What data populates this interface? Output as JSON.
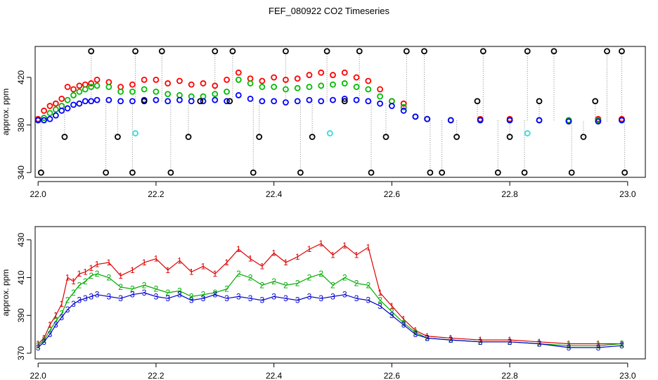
{
  "title": "FEF_080922  CO2 Timeseries",
  "chart_data": [
    {
      "type": "scatter",
      "ylabel": "approx. ppm",
      "xlim": [
        21.995,
        23.03
      ],
      "ylim": [
        336,
        446
      ],
      "xticks": [
        22.0,
        22.2,
        22.4,
        22.6,
        22.8,
        23.0
      ],
      "xtick_labels": [
        "22.0",
        "22.2",
        "22.4",
        "22.6",
        "22.8",
        "23.0"
      ],
      "yticks": [
        340,
        380,
        420
      ],
      "ytick_labels": [
        "340",
        "380",
        "420"
      ],
      "series": [
        {
          "name": "red",
          "color": "#ff0000",
          "x": [
            22.0,
            22.01,
            22.02,
            22.03,
            22.04,
            22.05,
            22.06,
            22.07,
            22.08,
            22.09,
            22.1,
            22.12,
            22.14,
            22.16,
            22.18,
            22.2,
            22.22,
            22.24,
            22.26,
            22.28,
            22.3,
            22.32,
            22.34,
            22.36,
            22.38,
            22.4,
            22.42,
            22.44,
            22.46,
            22.48,
            22.5,
            22.52,
            22.54,
            22.56,
            22.58,
            22.6,
            22.62,
            22.64,
            22.66,
            22.7,
            22.75,
            22.8,
            22.85,
            22.9,
            22.95,
            22.99
          ],
          "y": [
            385,
            392,
            396,
            398,
            402,
            412,
            410,
            413,
            414,
            415,
            418,
            416,
            412,
            414,
            418,
            418,
            415,
            417,
            414,
            415,
            413,
            418,
            424,
            419,
            417,
            420,
            418,
            419,
            422,
            424,
            422,
            424,
            420,
            417,
            410,
            400,
            398,
            387,
            385,
            384,
            385,
            385,
            384,
            384,
            385,
            385
          ]
        },
        {
          "name": "green",
          "color": "#00bb00",
          "x": [
            22.0,
            22.01,
            22.02,
            22.03,
            22.04,
            22.05,
            22.06,
            22.07,
            22.08,
            22.09,
            22.1,
            22.12,
            22.14,
            22.16,
            22.18,
            22.2,
            22.22,
            22.24,
            22.26,
            22.28,
            22.3,
            22.32,
            22.34,
            22.36,
            22.38,
            22.4,
            22.42,
            22.44,
            22.46,
            22.48,
            22.5,
            22.52,
            22.54,
            22.56,
            22.58,
            22.6,
            22.62,
            22.64,
            22.66,
            22.7,
            22.75,
            22.8,
            22.85,
            22.9,
            22.95,
            22.99
          ],
          "y": [
            384,
            386,
            390,
            393,
            396,
            401,
            405,
            408,
            410,
            412,
            413,
            412,
            408,
            408,
            410,
            408,
            406,
            405,
            404,
            404,
            406,
            408,
            418,
            415,
            412,
            412,
            410,
            411,
            412,
            413,
            414,
            415,
            412,
            410,
            404,
            400,
            395,
            387,
            385,
            384,
            384,
            384,
            384,
            384,
            384,
            384
          ]
        },
        {
          "name": "blue",
          "color": "#0000ff",
          "x": [
            22.0,
            22.01,
            22.02,
            22.03,
            22.04,
            22.05,
            22.06,
            22.07,
            22.08,
            22.09,
            22.1,
            22.12,
            22.14,
            22.16,
            22.18,
            22.2,
            22.22,
            22.24,
            22.26,
            22.28,
            22.3,
            22.32,
            22.34,
            22.36,
            22.38,
            22.4,
            22.42,
            22.44,
            22.46,
            22.48,
            22.5,
            22.52,
            22.54,
            22.56,
            22.58,
            22.6,
            22.62,
            22.64,
            22.66,
            22.7,
            22.75,
            22.8,
            22.85,
            22.9,
            22.95,
            22.99
          ],
          "y": [
            384,
            384,
            385,
            388,
            392,
            394,
            397,
            398,
            400,
            400,
            401,
            401,
            400,
            400,
            401,
            401,
            400,
            401,
            400,
            400,
            401,
            400,
            405,
            402,
            400,
            400,
            399,
            400,
            401,
            400,
            401,
            402,
            401,
            400,
            398,
            396,
            392,
            387,
            385,
            384,
            384,
            384,
            384,
            383,
            383,
            384
          ]
        },
        {
          "name": "black",
          "color": "#000000",
          "x": [
            22.005,
            22.045,
            22.09,
            22.115,
            22.135,
            22.16,
            22.165,
            22.18,
            22.21,
            22.225,
            22.255,
            22.275,
            22.3,
            22.325,
            22.33,
            22.365,
            22.375,
            22.42,
            22.445,
            22.465,
            22.49,
            22.52,
            22.545,
            22.565,
            22.59,
            22.625,
            22.655,
            22.665,
            22.685,
            22.71,
            22.745,
            22.755,
            22.78,
            22.8,
            22.825,
            22.83,
            22.85,
            22.875,
            22.905,
            22.925,
            22.945,
            22.965,
            22.99,
            22.995
          ],
          "y": [
            340,
            370,
            442,
            340,
            370,
            340,
            442,
            400,
            442,
            340,
            370,
            400,
            442,
            400,
            442,
            340,
            370,
            442,
            340,
            370,
            442,
            400,
            442,
            340,
            370,
            442,
            442,
            340,
            340,
            370,
            400,
            442,
            340,
            370,
            340,
            442,
            400,
            442,
            340,
            370,
            400,
            442,
            442,
            340
          ]
        },
        {
          "name": "cyan",
          "color": "#33dddd",
          "x": [
            22.165,
            22.495,
            22.83
          ],
          "y": [
            373,
            373,
            373
          ]
        }
      ]
    },
    {
      "type": "line",
      "ylabel": "approx. ppm",
      "xlim": [
        21.995,
        23.03
      ],
      "ylim": [
        367,
        437
      ],
      "xticks": [
        22.0,
        22.2,
        22.4,
        22.6,
        22.8,
        23.0
      ],
      "xtick_labels": [
        "22.0",
        "22.2",
        "22.4",
        "22.6",
        "22.8",
        "23.0"
      ],
      "yticks": [
        370,
        390,
        410,
        430
      ],
      "ytick_labels": [
        "370",
        "390",
        "410",
        "430"
      ],
      "series": [
        {
          "name": "1",
          "color": "#dd0000",
          "x": [
            22.0,
            22.01,
            22.02,
            22.03,
            22.04,
            22.05,
            22.06,
            22.07,
            22.08,
            22.09,
            22.1,
            22.12,
            22.14,
            22.16,
            22.18,
            22.2,
            22.22,
            22.24,
            22.26,
            22.28,
            22.3,
            22.32,
            22.34,
            22.36,
            22.38,
            22.4,
            22.42,
            22.44,
            22.46,
            22.48,
            22.5,
            22.52,
            22.54,
            22.56,
            22.58,
            22.6,
            22.62,
            22.64,
            22.66,
            22.7,
            22.75,
            22.8,
            22.85,
            22.9,
            22.95,
            22.99
          ],
          "y": [
            375,
            378,
            385,
            390,
            396,
            410,
            408,
            412,
            413,
            415,
            417,
            418,
            411,
            414,
            418,
            420,
            414,
            419,
            413,
            416,
            412,
            418,
            425,
            420,
            416,
            423,
            418,
            421,
            425,
            428,
            422,
            427,
            422,
            426,
            402,
            395,
            388,
            382,
            379,
            378,
            377,
            377,
            376,
            375,
            375,
            375
          ]
        },
        {
          "name": "2",
          "color": "#00aa00",
          "x": [
            22.0,
            22.01,
            22.02,
            22.03,
            22.04,
            22.05,
            22.06,
            22.07,
            22.08,
            22.09,
            22.1,
            22.12,
            22.14,
            22.16,
            22.18,
            22.2,
            22.22,
            22.24,
            22.26,
            22.28,
            22.3,
            22.32,
            22.34,
            22.36,
            22.38,
            22.4,
            22.42,
            22.44,
            22.46,
            22.48,
            22.5,
            22.52,
            22.54,
            22.56,
            22.58,
            22.6,
            22.62,
            22.64,
            22.66,
            22.7,
            22.75,
            22.8,
            22.85,
            22.9,
            22.95,
            22.99
          ],
          "y": [
            374,
            377,
            382,
            387,
            391,
            398,
            402,
            406,
            408,
            411,
            412,
            410,
            405,
            404,
            406,
            404,
            402,
            403,
            400,
            401,
            402,
            404,
            412,
            410,
            406,
            408,
            406,
            407,
            410,
            412,
            406,
            410,
            407,
            406,
            398,
            392,
            386,
            381,
            378,
            377,
            376,
            376,
            375,
            374,
            374,
            375
          ]
        },
        {
          "name": "3",
          "color": "#0000cc",
          "x": [
            22.0,
            22.01,
            22.02,
            22.03,
            22.04,
            22.05,
            22.06,
            22.07,
            22.08,
            22.09,
            22.1,
            22.12,
            22.14,
            22.16,
            22.18,
            22.2,
            22.22,
            22.24,
            22.26,
            22.28,
            22.3,
            22.32,
            22.34,
            22.36,
            22.38,
            22.4,
            22.42,
            22.44,
            22.46,
            22.48,
            22.5,
            22.52,
            22.54,
            22.56,
            22.58,
            22.6,
            22.62,
            22.64,
            22.66,
            22.7,
            22.75,
            22.8,
            22.85,
            22.9,
            22.95,
            22.99
          ],
          "y": [
            373,
            376,
            380,
            385,
            389,
            393,
            396,
            398,
            399,
            400,
            401,
            400,
            399,
            401,
            402,
            400,
            399,
            401,
            398,
            399,
            401,
            399,
            400,
            399,
            398,
            400,
            399,
            398,
            400,
            399,
            400,
            401,
            399,
            398,
            395,
            390,
            385,
            380,
            378,
            377,
            376,
            376,
            375,
            373,
            373,
            374
          ]
        }
      ]
    }
  ]
}
